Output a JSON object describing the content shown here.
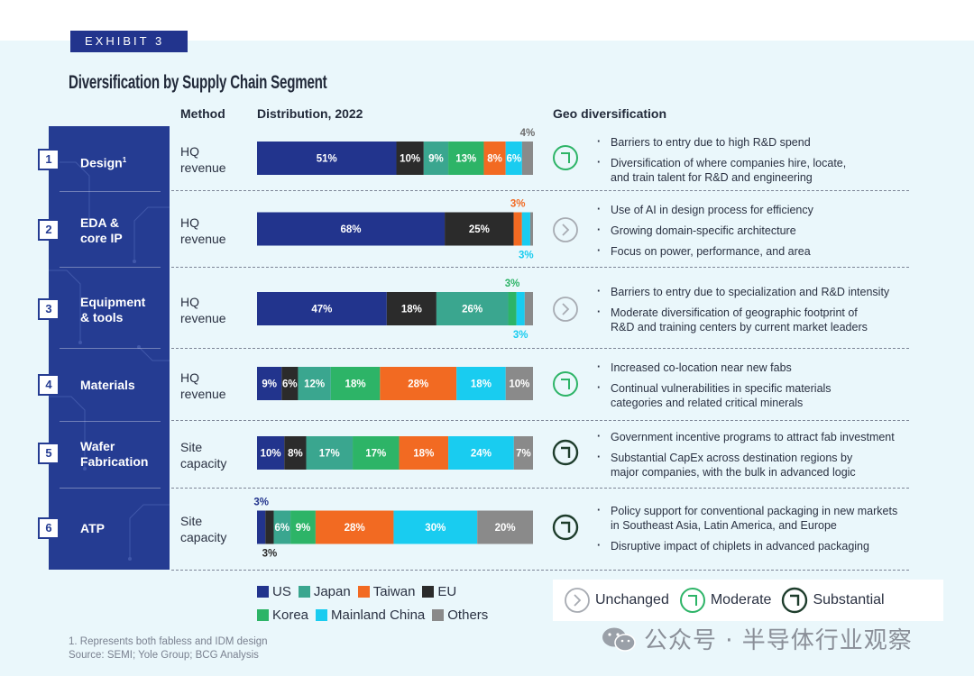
{
  "exhibit_label": "EXHIBIT 3",
  "title": "Diversification by Supply Chain Segment",
  "headers": {
    "method": "Method",
    "distribution": "Distribution, 2022",
    "geo": "Geo diversification"
  },
  "colors": {
    "US": "#22348d",
    "Japan": "#3aa68f",
    "Taiwan": "#f26a22",
    "EU": "#2b2b2b",
    "Korea": "#2db467",
    "Mainland China": "#19ccf0",
    "Others": "#8a8a8a",
    "geo_icon": "#1e5c3a",
    "geo_unchanged": "#a7abb2",
    "geo_moderate": "#2db467"
  },
  "rows": [
    {
      "num": "1",
      "segment": "Design",
      "sup": "1",
      "method": "HQ\nrevenue",
      "geo": "moderate",
      "bullets": [
        "Barriers to entry due to high R&D spend",
        "Diversification of where companies hire, locate,\nand train talent for R&D and engineering"
      ]
    },
    {
      "num": "2",
      "segment": "EDA &\ncore IP",
      "sup": "",
      "method": "HQ\nrevenue",
      "geo": "unchanged",
      "bullets": [
        "Use of AI in design process for efficiency",
        "Growing domain-specific architecture",
        "Focus on power, performance, and area"
      ]
    },
    {
      "num": "3",
      "segment": "Equipment\n& tools",
      "sup": "",
      "method": "HQ\nrevenue",
      "geo": "unchanged",
      "bullets": [
        "Barriers to entry due to specialization and R&D intensity",
        "Moderate diversification of geographic footprint of\nR&D and training centers by current market leaders"
      ]
    },
    {
      "num": "4",
      "segment": "Materials",
      "sup": "",
      "method": "HQ\nrevenue",
      "geo": "moderate",
      "bullets": [
        "Increased co-location near new fabs",
        "Continual vulnerabilities in specific materials\ncategories and related critical minerals"
      ]
    },
    {
      "num": "5",
      "segment": "Wafer\nFabrication",
      "sup": "",
      "method": "Site\ncapacity",
      "geo": "substantial",
      "bullets": [
        "Government incentive programs to attract fab investment",
        "Substantial CapEx across destination regions by\nmajor companies, with the bulk in advanced logic"
      ]
    },
    {
      "num": "6",
      "segment": "ATP",
      "sup": "",
      "method": "Site\ncapacity",
      "geo": "substantial",
      "bullets": [
        "Policy support for conventional packaging in new markets\nin Southeast Asia, Latin America, and Europe",
        "Disruptive impact of chiplets in advanced packaging"
      ]
    }
  ],
  "chart_data": {
    "type": "bar",
    "orientation": "horizontal-stacked-100",
    "title": "Distribution, 2022",
    "categories": [
      "Design",
      "EDA & core IP",
      "Equipment & tools",
      "Materials",
      "Wafer Fabrication",
      "ATP"
    ],
    "series": [
      {
        "name": "US",
        "values": [
          51,
          68,
          47,
          9,
          10,
          3
        ]
      },
      {
        "name": "EU",
        "values": [
          10,
          25,
          18,
          6,
          8,
          3
        ]
      },
      {
        "name": "Japan",
        "values": [
          9,
          0,
          26,
          12,
          17,
          6
        ]
      },
      {
        "name": "Korea",
        "values": [
          13,
          0,
          3,
          18,
          17,
          9
        ]
      },
      {
        "name": "Taiwan",
        "values": [
          8,
          3,
          0,
          28,
          18,
          28
        ]
      },
      {
        "name": "Mainland China",
        "values": [
          6,
          3,
          3,
          18,
          24,
          30
        ]
      },
      {
        "name": "Others",
        "values": [
          4,
          1,
          3,
          10,
          7,
          20
        ]
      }
    ],
    "labels": [
      [
        "51%",
        "10%",
        "9%",
        "13%",
        "8%",
        "6%",
        "4%"
      ],
      [
        "68%",
        "25%",
        "",
        "",
        "3%",
        "3%",
        ""
      ],
      [
        "47%",
        "18%",
        "26%",
        "3%",
        "",
        "3%",
        ""
      ],
      [
        "9%",
        "6%",
        "12%",
        "18%",
        "28%",
        "18%",
        "10%"
      ],
      [
        "10%",
        "8%",
        "17%",
        "17%",
        "18%",
        "24%",
        "7%"
      ],
      [
        "3%",
        "3%",
        "6%",
        "9%",
        "28%",
        "30%",
        "20%"
      ]
    ],
    "legend": [
      "US",
      "Japan",
      "Taiwan",
      "EU",
      "Korea",
      "Mainland China",
      "Others"
    ]
  },
  "geo_legend": {
    "unchanged": "Unchanged",
    "moderate": "Moderate",
    "substantial": "Substantial"
  },
  "footnote": "1. Represents both fabless and IDM design",
  "source": "Source: SEMI; Yole Group; BCG Analysis",
  "watermark": "公众号 · 半导体行业观察"
}
